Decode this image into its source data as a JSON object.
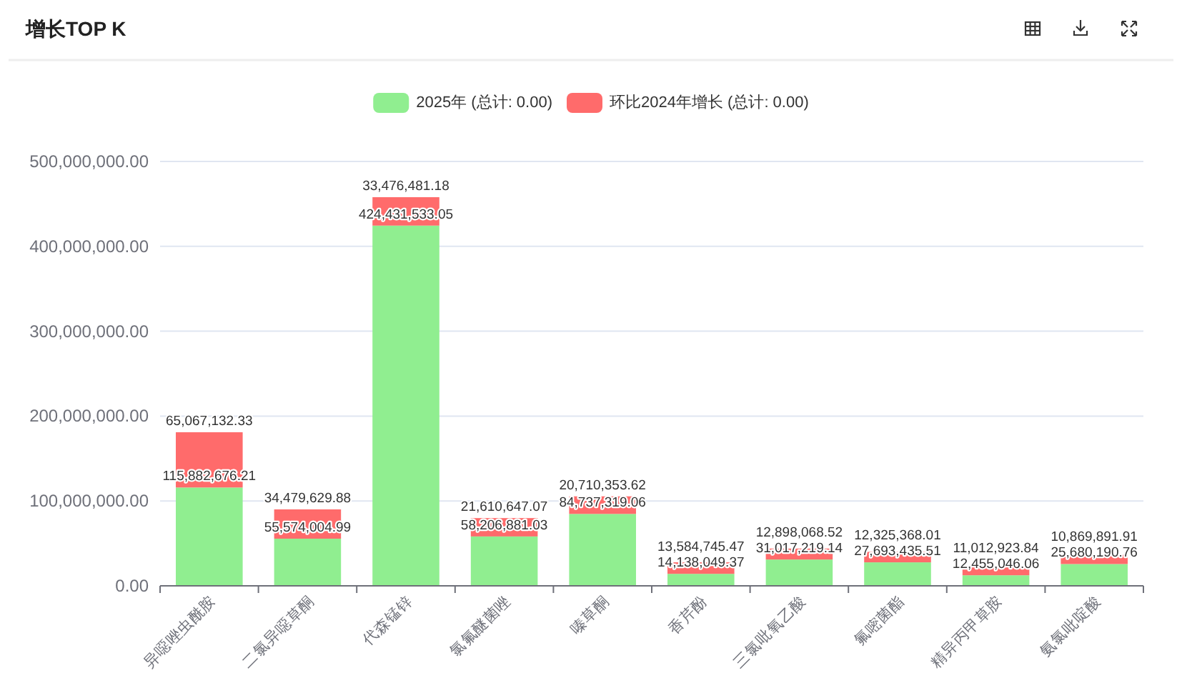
{
  "chart_data": {
    "type": "bar",
    "title": "增长TOP K",
    "stacked": true,
    "legend": "top",
    "grid": "y",
    "categories": [
      "异噁唑虫酰胺",
      "二氯异噁草酮",
      "代森锰锌",
      "氯氟醚菌唑",
      "嗪草酮",
      "香芹酚",
      "三氯吡氧乙酸",
      "氟嘧菌酯",
      "精异丙甲草胺",
      "氨氯吡啶酸"
    ],
    "series": [
      {
        "name": "2025年 (总计: 0.00)",
        "color": "#90ee90",
        "values": [
          115882676.21,
          55574004.99,
          424431533.05,
          58206881.03,
          84737319.06,
          14138049.37,
          31017219.14,
          27693435.51,
          12455046.06,
          25680190.76
        ],
        "value_labels": [
          "115,882,676.21",
          "55,574,004.99",
          "424,431,533.05",
          "58,206,881.03",
          "84,737,319.06",
          "14,138,049.37",
          "31,017,219.14",
          "27,693,435.51",
          "12,455,046.06",
          "25,680,190.76"
        ]
      },
      {
        "name": "环比2024年增长 (总计: 0.00)",
        "color": "#ff6b6b",
        "values": [
          65067132.33,
          34479629.88,
          33476481.18,
          21610647.07,
          20710353.62,
          13584745.47,
          12898068.52,
          12325368.01,
          11012923.84,
          10869891.91
        ],
        "value_labels": [
          "65,067,132.33",
          "34,479,629.88",
          "33,476,481.18",
          "21,610,647.07",
          "20,710,353.62",
          "13,584,745.47",
          "12,898,068.52",
          "12,325,368.01",
          "11,012,923.84",
          "10,869,891.91"
        ]
      }
    ],
    "ylim": [
      0,
      500000000
    ],
    "yticks": [
      {
        "value": 0,
        "label": "0.00"
      },
      {
        "value": 100000000,
        "label": "100,000,000.00"
      },
      {
        "value": 200000000,
        "label": "200,000,000.00"
      },
      {
        "value": 300000000,
        "label": "300,000,000.00"
      },
      {
        "value": 400000000,
        "label": "400,000,000.00"
      },
      {
        "value": 500000000,
        "label": "500,000,000.00"
      }
    ]
  }
}
